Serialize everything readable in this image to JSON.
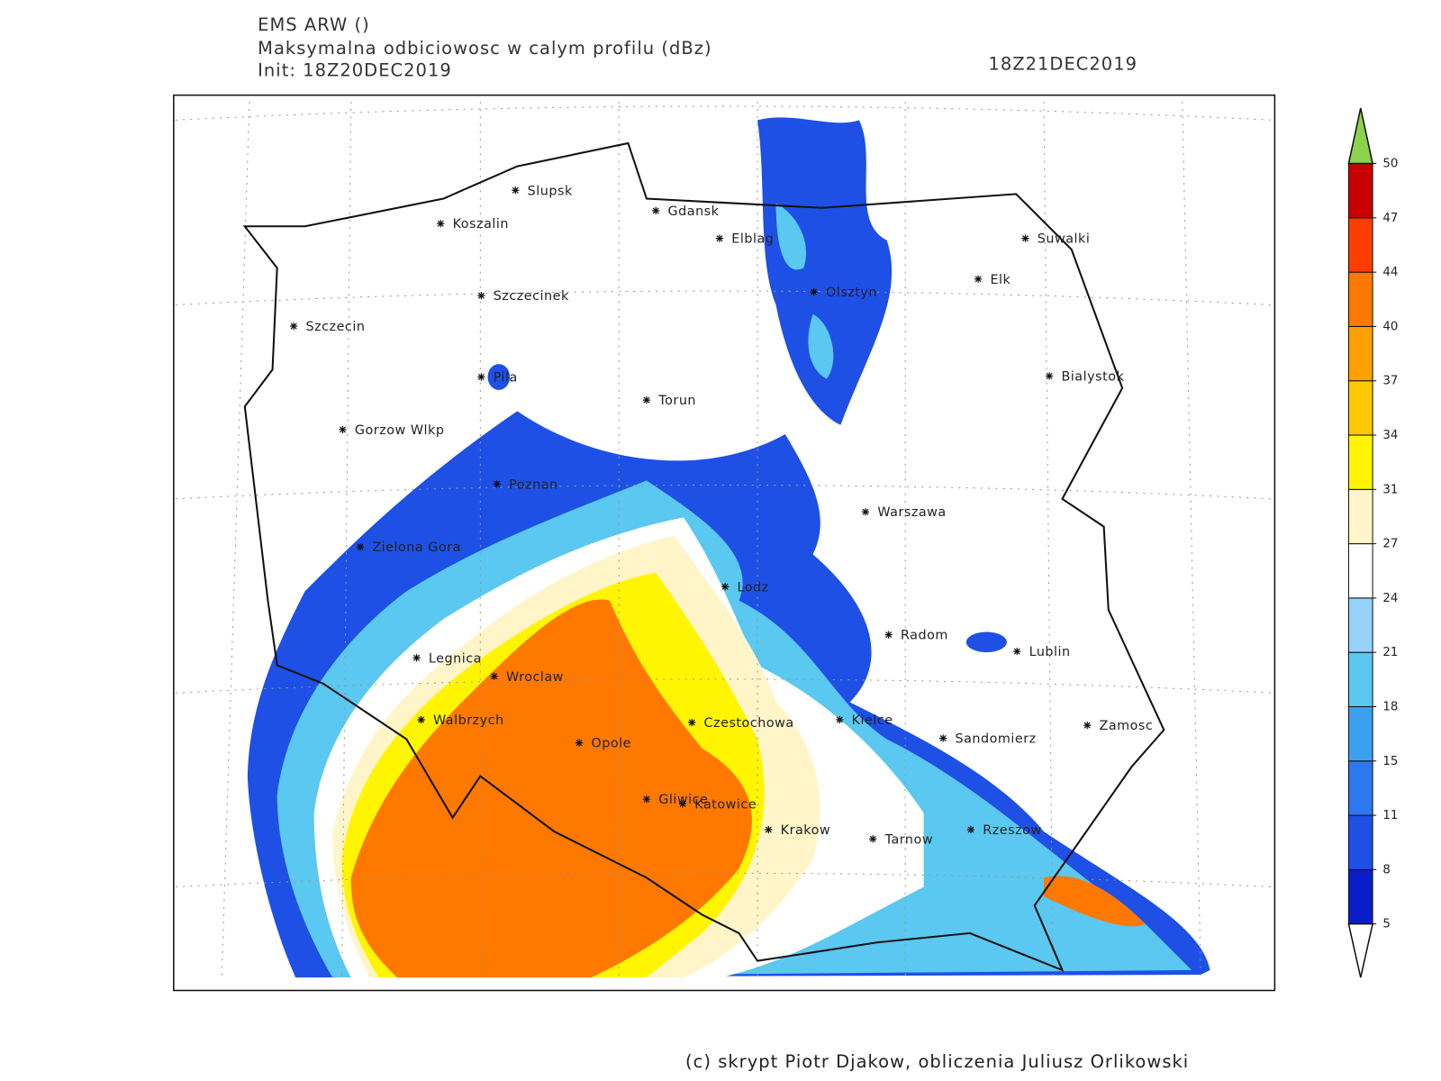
{
  "header": {
    "model": "EMS ARW ()",
    "field": "Maksymalna odbiciowosc w calym profilu (dBz)",
    "init": "Init: 18Z20DEC2019",
    "valid": "18Z21DEC2019"
  },
  "map": {
    "cities": [
      "Slupsk",
      "Koszalin",
      "Gdansk",
      "Elblag",
      "Suwalki",
      "Elk",
      "Olsztyn",
      "Szczecinek",
      "Szczecin",
      "Bialystok",
      "Pila",
      "Torun",
      "Gorzow Wlkp",
      "Poznan",
      "Warszawa",
      "Zielona Gora",
      "Lodz",
      "Radom",
      "Lublin",
      "Legnica",
      "Wroclaw",
      "Walbrzych",
      "Czestochowa",
      "Kielce",
      "Zamosc",
      "Opole",
      "Sandomierz",
      "Gliwice",
      "Katowice",
      "Krakow",
      "Rzeszow",
      "Tarnow"
    ]
  },
  "colorbar": {
    "levels": [
      5,
      8,
      11,
      15,
      18,
      21,
      24,
      27,
      31,
      34,
      37,
      40,
      44,
      47,
      50
    ],
    "colors": [
      "#0a1ec8",
      "#1e50e6",
      "#2d78f0",
      "#3ca0f0",
      "#5ac8f0",
      "#96d2fa",
      "#ffffff",
      "#fff5c8",
      "#fff500",
      "#ffc800",
      "#ffa000",
      "#ff7800",
      "#ff3c00",
      "#c80000"
    ],
    "below_color": "#ffffff",
    "above_color": "#8cd24b"
  },
  "footer": "(c) skrypt Piotr Djakow, obliczenia Juliusz Orlikowski"
}
